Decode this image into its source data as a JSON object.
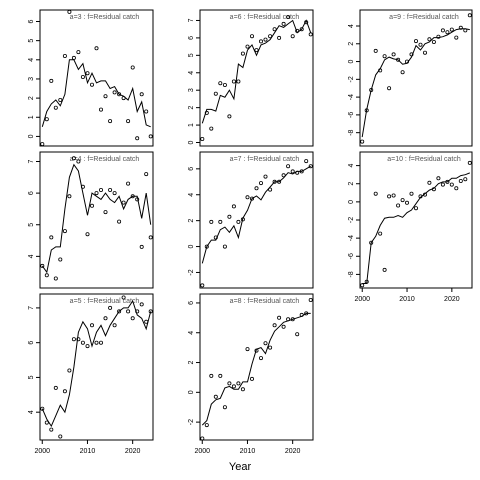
{
  "xlabel": "Year",
  "chart_data": [
    {
      "type": "line",
      "title": "a=3  :  f=Residual catch",
      "xlim": [
        1999.5,
        2024.5
      ],
      "ylim": [
        -0.5,
        6.6
      ],
      "yticks": [
        "0",
        "1",
        "2",
        "3",
        "4",
        "5",
        "6"
      ],
      "show_xticks": false,
      "x": [
        2000,
        2001,
        2002,
        2003,
        2004,
        2005,
        2006,
        2007,
        2008,
        2009,
        2010,
        2011,
        2012,
        2013,
        2014,
        2015,
        2016,
        2017,
        2018,
        2019,
        2020,
        2021,
        2022,
        2023,
        2024
      ],
      "series": [
        {
          "values": [
            0.5,
            1.3,
            1.7,
            1.9,
            1.6,
            2.2,
            4.0,
            4.0,
            3.5,
            3.8,
            2.8,
            3.3,
            2.8,
            2.9,
            2.9,
            2.5,
            2.6,
            2.2,
            2.1,
            1.9,
            2.5,
            1.3,
            1.8,
            0.6,
            0.5
          ]
        },
        {
          "style": "points",
          "values": [
            -0.4,
            0.9,
            2.9,
            1.5,
            1.9,
            4.2,
            6.5,
            4.1,
            4.4,
            3.1,
            3.3,
            2.7,
            4.6,
            1.4,
            2.1,
            0.8,
            2.3,
            2.2,
            2.0,
            0.8,
            3.6,
            -0.1,
            2.2,
            1.3,
            0.0
          ]
        }
      ]
    },
    {
      "type": "line",
      "title": "a=6  :  f=Residual catch",
      "xlim": [
        1999.5,
        2024.5
      ],
      "ylim": [
        -0.2,
        7.6
      ],
      "yticks": [
        "0",
        "1",
        "2",
        "3",
        "4",
        "5",
        "6",
        "7"
      ],
      "show_xticks": false,
      "x": [
        2000,
        2001,
        2002,
        2003,
        2004,
        2005,
        2006,
        2007,
        2008,
        2009,
        2010,
        2011,
        2012,
        2013,
        2014,
        2015,
        2016,
        2017,
        2018,
        2019,
        2020,
        2021,
        2022,
        2023,
        2024
      ],
      "series": [
        {
          "values": [
            1.1,
            1.9,
            1.9,
            1.8,
            2.7,
            2.6,
            3.0,
            2.5,
            4.5,
            4.3,
            5.3,
            5.6,
            5.0,
            5.6,
            5.7,
            5.9,
            6.3,
            6.7,
            6.6,
            6.8,
            7.0,
            6.3,
            6.5,
            7.0,
            6.3
          ]
        },
        {
          "style": "points",
          "values": [
            0.2,
            1.7,
            0.8,
            2.8,
            3.4,
            3.3,
            1.5,
            3.5,
            3.5,
            5.1,
            5.5,
            6.1,
            5.3,
            5.8,
            5.9,
            6.1,
            6.5,
            6.0,
            6.8,
            7.2,
            6.1,
            6.4,
            6.5,
            6.9,
            6.2
          ]
        }
      ]
    },
    {
      "type": "line",
      "title": "a=9  :  f=Residual catch",
      "xlim": [
        1999.5,
        2024.5
      ],
      "ylim": [
        -9.5,
        5.8
      ],
      "yticks": [
        "-8",
        "-6",
        "-4",
        "-2",
        "0",
        "2",
        "4"
      ],
      "show_xticks": false,
      "x": [
        2000,
        2001,
        2002,
        2003,
        2004,
        2005,
        2006,
        2007,
        2008,
        2009,
        2010,
        2011,
        2012,
        2013,
        2014,
        2015,
        2016,
        2017,
        2018,
        2019,
        2020,
        2021,
        2022,
        2023,
        2024
      ],
      "series": [
        {
          "values": [
            -8.5,
            -5.4,
            -3.2,
            -1.5,
            -0.8,
            0.2,
            0.5,
            0.3,
            0.2,
            -0.3,
            -0.2,
            0.5,
            1.8,
            1.3,
            2.0,
            2.2,
            2.7,
            2.7,
            2.8,
            3.0,
            3.3,
            3.6,
            3.7,
            3.7,
            3.6
          ]
        },
        {
          "style": "points",
          "values": [
            -9.0,
            -5.5,
            -3.2,
            1.2,
            -1.0,
            0.6,
            -3.0,
            0.8,
            0.2,
            -1.2,
            0.0,
            0.8,
            2.3,
            1.9,
            1.0,
            2.5,
            2.2,
            2.8,
            3.5,
            3.3,
            3.6,
            2.7,
            3.8,
            3.5,
            5.2
          ]
        }
      ]
    },
    {
      "type": "line",
      "title": "a=4  :  f=Residual catch",
      "xlim": [
        1999.5,
        2024.5
      ],
      "ylim": [
        3.0,
        7.3
      ],
      "yticks": [
        "4",
        "5",
        "6",
        "7"
      ],
      "show_xticks": false,
      "x": [
        2000,
        2001,
        2002,
        2003,
        2004,
        2005,
        2006,
        2007,
        2008,
        2009,
        2010,
        2011,
        2012,
        2013,
        2014,
        2015,
        2016,
        2017,
        2018,
        2019,
        2020,
        2021,
        2022,
        2023,
        2024
      ],
      "series": [
        {
          "values": [
            3.7,
            3.5,
            4.2,
            4.3,
            4.3,
            5.5,
            6.5,
            6.9,
            6.7,
            6.0,
            5.3,
            6.0,
            5.9,
            5.8,
            6.0,
            5.8,
            5.7,
            5.9,
            5.5,
            5.8,
            5.9,
            5.9,
            5.2,
            6.0,
            5.0
          ]
        },
        {
          "style": "points",
          "values": [
            3.7,
            3.4,
            4.6,
            3.3,
            3.9,
            4.8,
            5.9,
            7.1,
            7.0,
            6.2,
            4.7,
            5.6,
            6.0,
            6.1,
            5.4,
            6.1,
            6.0,
            5.1,
            5.7,
            6.3,
            5.9,
            5.8,
            4.3,
            6.6,
            4.6
          ]
        }
      ]
    },
    {
      "type": "line",
      "title": "a=7  :  f=Residual catch",
      "xlim": [
        1999.5,
        2024.5
      ],
      "ylim": [
        -3.2,
        7.3
      ],
      "yticks": [
        "-2",
        "0",
        "2",
        "4",
        "6"
      ],
      "show_xticks": false,
      "x": [
        2000,
        2001,
        2002,
        2003,
        2004,
        2005,
        2006,
        2007,
        2008,
        2009,
        2010,
        2011,
        2012,
        2013,
        2014,
        2015,
        2016,
        2017,
        2018,
        2019,
        2020,
        2021,
        2022,
        2023,
        2024
      ],
      "series": [
        {
          "values": [
            -1.3,
            0.0,
            0.5,
            0.5,
            1.3,
            1.5,
            1.1,
            1.6,
            0.7,
            2.2,
            2.8,
            3.7,
            3.9,
            3.6,
            4.2,
            4.6,
            5.0,
            5.0,
            5.3,
            5.7,
            5.6,
            5.8,
            5.8,
            6.0,
            6.2
          ]
        },
        {
          "style": "points",
          "values": [
            -3.0,
            0.0,
            1.9,
            0.7,
            1.9,
            0.0,
            2.3,
            3.1,
            1.9,
            2.1,
            3.8,
            3.7,
            4.5,
            4.9,
            5.4,
            4.4,
            5.0,
            5.0,
            5.5,
            6.2,
            5.8,
            5.7,
            5.8,
            6.6,
            6.2
          ]
        }
      ]
    },
    {
      "type": "line",
      "title": "a=10  :  f=Residual catch",
      "xlim": [
        1999.5,
        2024.5
      ],
      "ylim": [
        -9.5,
        5.5
      ],
      "yticks": [
        "-8",
        "-6",
        "-4",
        "-2",
        "0",
        "2",
        "4"
      ],
      "show_xticks": true,
      "xticks": [
        "2000",
        "2010",
        "2020"
      ],
      "x": [
        2000,
        2001,
        2002,
        2003,
        2004,
        2005,
        2006,
        2007,
        2008,
        2009,
        2010,
        2011,
        2012,
        2013,
        2014,
        2015,
        2016,
        2017,
        2018,
        2019,
        2020,
        2021,
        2022,
        2023,
        2024
      ],
      "series": [
        {
          "values": [
            -9.0,
            -9.0,
            -4.5,
            -3.8,
            -2.6,
            -1.8,
            -1.7,
            -1.7,
            -1.5,
            -1.7,
            -1.2,
            -0.9,
            -0.2,
            0.5,
            0.9,
            1.3,
            1.5,
            2.0,
            2.2,
            2.2,
            2.6,
            2.6,
            2.9,
            3.0,
            3.2
          ]
        },
        {
          "style": "points",
          "values": [
            -9.2,
            -8.8,
            -4.5,
            0.9,
            -3.5,
            -7.5,
            0.6,
            0.7,
            -0.4,
            0.2,
            -0.1,
            0.9,
            -0.7,
            0.6,
            0.8,
            2.1,
            1.4,
            2.6,
            1.9,
            2.2,
            1.9,
            1.5,
            2.3,
            2.5,
            4.3
          ]
        }
      ]
    },
    {
      "type": "line",
      "title": "a=5  :  f=Residual catch",
      "xlim": [
        1999.5,
        2024.5
      ],
      "ylim": [
        3.2,
        7.4
      ],
      "yticks": [
        "4",
        "5",
        "6",
        "7"
      ],
      "show_xticks": true,
      "xticks": [
        "2000",
        "2010",
        "2020"
      ],
      "x": [
        2000,
        2001,
        2002,
        2003,
        2004,
        2005,
        2006,
        2007,
        2008,
        2009,
        2010,
        2011,
        2012,
        2013,
        2014,
        2015,
        2016,
        2017,
        2018,
        2019,
        2020,
        2021,
        2022,
        2023,
        2024
      ],
      "series": [
        {
          "values": [
            4.1,
            3.8,
            3.6,
            3.9,
            4.2,
            4.0,
            4.5,
            5.3,
            6.3,
            6.6,
            6.4,
            5.9,
            6.3,
            6.5,
            6.2,
            6.5,
            6.7,
            6.9,
            7.0,
            7.0,
            7.2,
            6.8,
            6.7,
            6.4,
            6.9
          ]
        },
        {
          "style": "points",
          "values": [
            4.1,
            3.7,
            3.5,
            4.7,
            3.3,
            4.6,
            5.2,
            6.1,
            6.1,
            6.0,
            5.9,
            6.5,
            6.0,
            6.0,
            6.7,
            7.0,
            6.5,
            6.9,
            7.3,
            6.9,
            6.7,
            6.9,
            7.1,
            6.6,
            6.9
          ]
        }
      ]
    },
    {
      "type": "line",
      "title": "a=8  :  f=Residual catch",
      "xlim": [
        1999.5,
        2024.5
      ],
      "ylim": [
        -3.2,
        6.6
      ],
      "yticks": [
        "-2",
        "0",
        "2",
        "4",
        "6"
      ],
      "show_xticks": true,
      "xticks": [
        "2000",
        "2010",
        "2020"
      ],
      "x": [
        2000,
        2001,
        2002,
        2003,
        2004,
        2005,
        2006,
        2007,
        2008,
        2009,
        2010,
        2011,
        2012,
        2013,
        2014,
        2015,
        2016,
        2017,
        2018,
        2019,
        2020,
        2021,
        2022,
        2023,
        2024
      ],
      "series": [
        {
          "values": [
            -2.2,
            -1.9,
            -0.8,
            -0.5,
            -0.4,
            0.3,
            0.4,
            0.2,
            0.2,
            0.7,
            0.7,
            1.9,
            2.9,
            3.0,
            2.6,
            3.5,
            4.1,
            4.4,
            4.7,
            4.8,
            4.9,
            5.0,
            5.1,
            5.3,
            5.3
          ]
        },
        {
          "style": "points",
          "values": [
            -3.1,
            -2.2,
            1.1,
            -0.3,
            1.1,
            -1.0,
            0.6,
            0.4,
            0.6,
            0.2,
            2.9,
            0.9,
            2.8,
            2.3,
            3.3,
            3.0,
            4.5,
            5.0,
            4.4,
            4.9,
            4.9,
            3.9,
            5.2,
            5.3,
            6.2
          ]
        }
      ]
    }
  ]
}
